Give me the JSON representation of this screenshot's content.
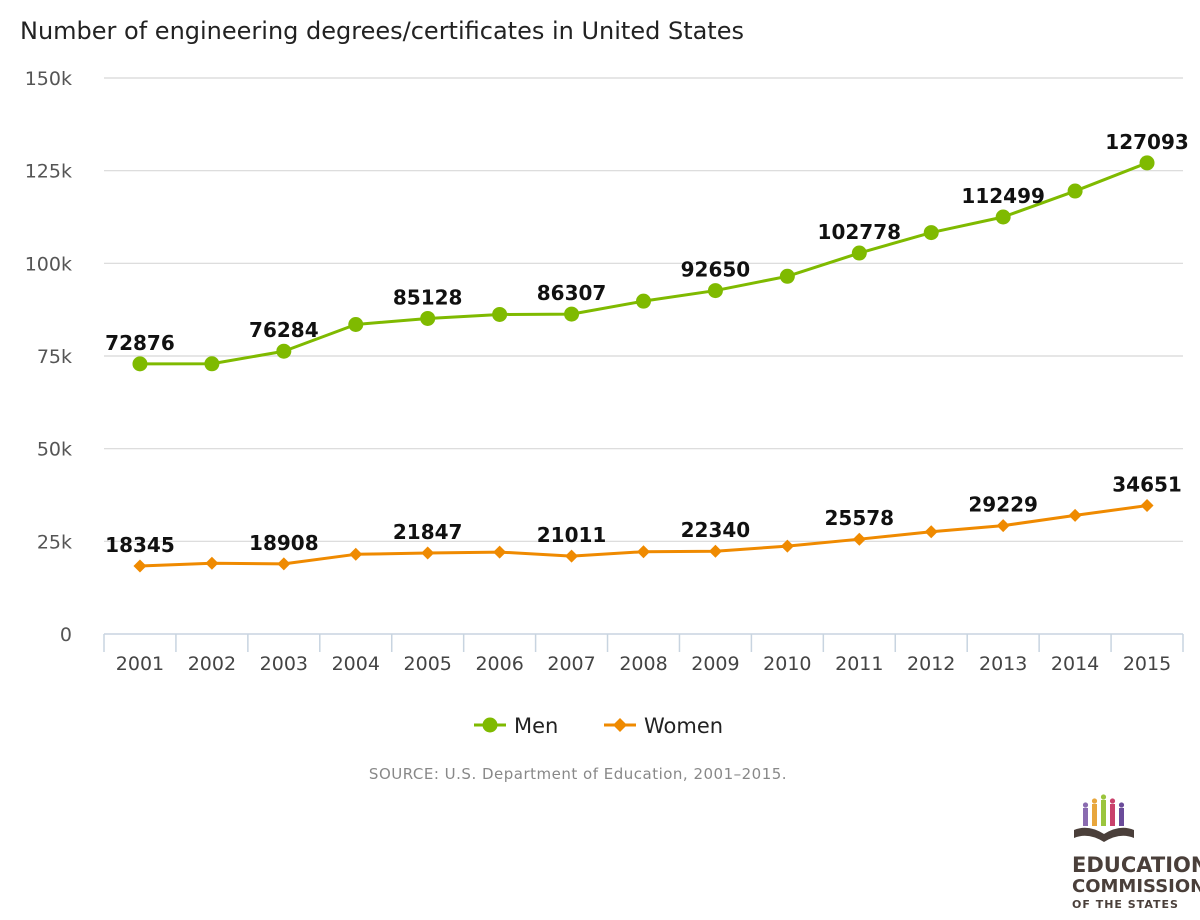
{
  "chart_data": {
    "type": "line",
    "title": "Number of engineering degrees/certificates in United States",
    "xlabel": "",
    "ylabel": "",
    "categories": [
      "2001",
      "2002",
      "2003",
      "2004",
      "2005",
      "2006",
      "2007",
      "2008",
      "2009",
      "2010",
      "2011",
      "2012",
      "2013",
      "2014",
      "2015"
    ],
    "ylim": [
      0,
      150000
    ],
    "yticks": [
      0,
      25000,
      50000,
      75000,
      100000,
      125000,
      150000
    ],
    "ytick_labels": [
      "0",
      "25k",
      "50k",
      "75k",
      "100k",
      "125k",
      "150k"
    ],
    "grid": true,
    "legend_position": "bottom-center",
    "series": [
      {
        "name": "Men",
        "color": "#7fba00",
        "marker": "circle",
        "values": [
          72876,
          72900,
          76284,
          83500,
          85128,
          86200,
          86307,
          89800,
          92650,
          96500,
          102778,
          108300,
          112499,
          119500,
          127093
        ],
        "labels": [
          "72876",
          null,
          "76284",
          null,
          "85128",
          null,
          "86307",
          null,
          "92650",
          null,
          "102778",
          null,
          "112499",
          null,
          "127093"
        ]
      },
      {
        "name": "Women",
        "color": "#ef8a00",
        "marker": "diamond",
        "values": [
          18345,
          19100,
          18908,
          21500,
          21847,
          22100,
          21011,
          22200,
          22340,
          23700,
          25578,
          27600,
          29229,
          32000,
          34651
        ],
        "labels": [
          "18345",
          null,
          "18908",
          null,
          "21847",
          null,
          "21011",
          null,
          "22340",
          null,
          "25578",
          null,
          "29229",
          null,
          "34651"
        ]
      }
    ]
  },
  "source_text": "SOURCE: U.S. Department of Education, 2001–2015.",
  "logo": {
    "line1": "EDUCATION",
    "line2": "COMMISSION",
    "line3": "OF THE STATES",
    "colors": [
      "#8a6bb0",
      "#e8a63c",
      "#9bc53d",
      "#c9416b",
      "#6b4c9a"
    ]
  }
}
